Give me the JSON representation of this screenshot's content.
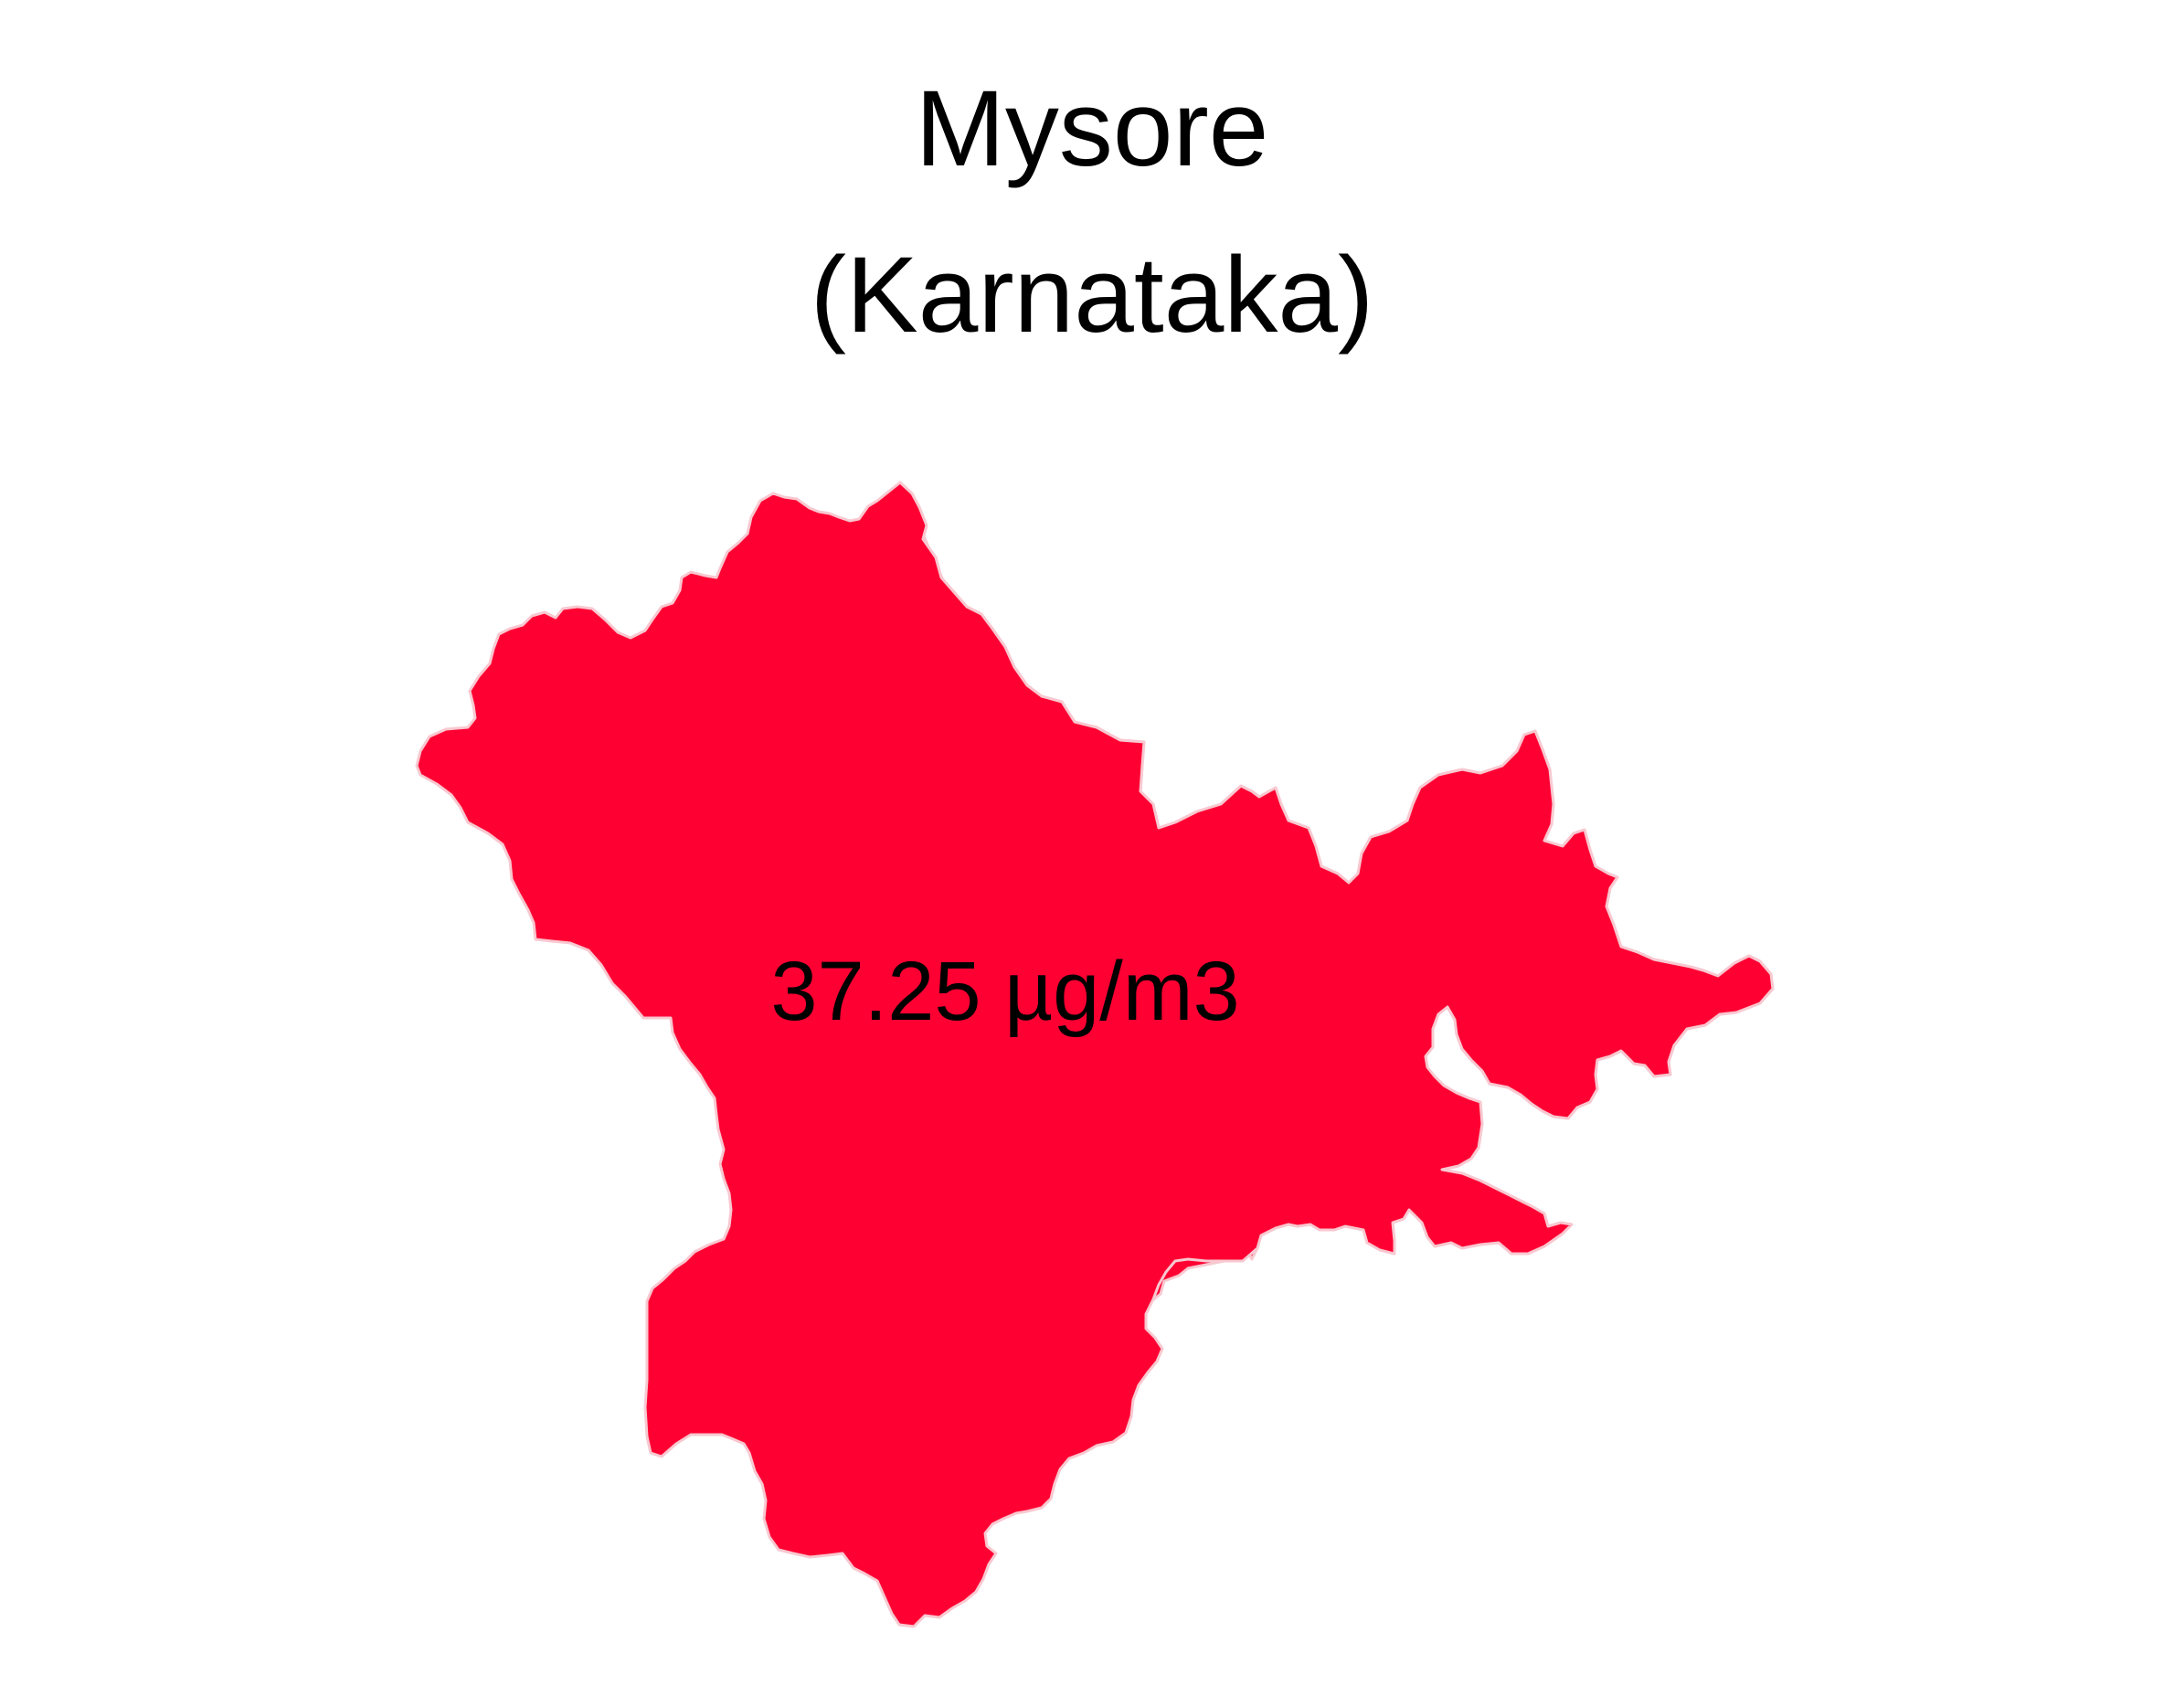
{
  "map": {
    "title": "Mysore",
    "subtitle": "(Karnataka)",
    "region": {
      "name": "Mysore",
      "value_label": "37.25 µg/m3",
      "value": 37.25,
      "unit": "µg/m3",
      "fill_color": "#ff0033",
      "stroke_color": "#f8c8d0"
    },
    "background_color": "#ffffff"
  }
}
